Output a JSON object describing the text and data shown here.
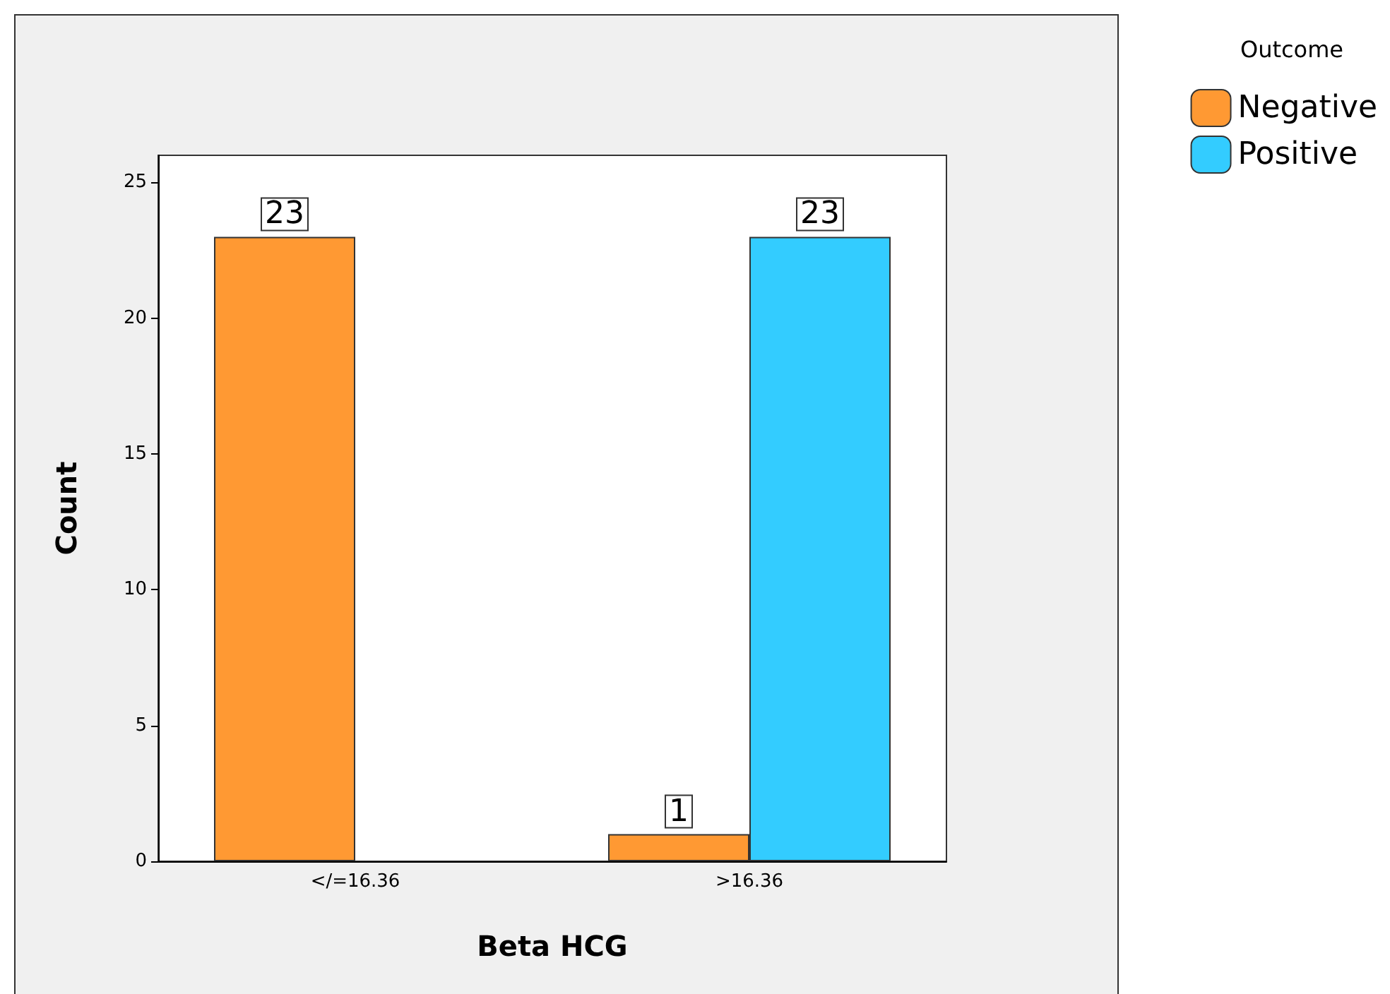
{
  "chart_data": {
    "type": "bar",
    "xlabel": "Beta HCG",
    "ylabel": "Count",
    "legend_title": "Outcome",
    "categories": [
      "</=16.36",
      ">16.36"
    ],
    "series": [
      {
        "name": "Negative",
        "color": "#ff9933",
        "values": [
          23,
          1
        ]
      },
      {
        "name": "Positive",
        "color": "#33ccff",
        "values": [
          null,
          23
        ]
      }
    ],
    "ylim": [
      0,
      26
    ],
    "yticks": [
      0,
      5,
      10,
      15,
      20,
      25
    ],
    "grid": false,
    "legend": "top right",
    "data_labels": true
  }
}
